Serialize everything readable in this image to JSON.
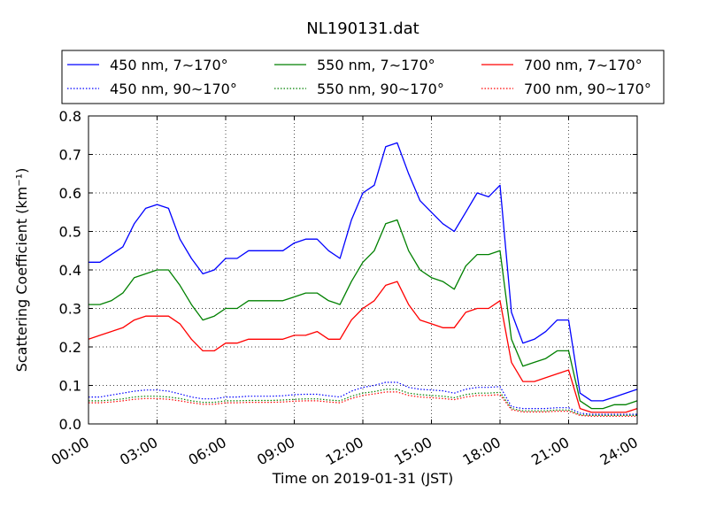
{
  "chart_data": {
    "type": "line",
    "title": "NL190131.dat",
    "xlabel": "Time on 2019-01-31 (JST)",
    "ylabel": "Scattering Coefficient (km⁻¹)",
    "xlim": [
      0,
      24
    ],
    "ylim": [
      0,
      0.8
    ],
    "grid": true,
    "legend_placement": "top",
    "x_tick_labels": [
      "00:00",
      "03:00",
      "06:00",
      "09:00",
      "12:00",
      "15:00",
      "18:00",
      "21:00",
      "24:00"
    ],
    "y_tick_labels": [
      "0.0",
      "0.1",
      "0.2",
      "0.3",
      "0.4",
      "0.5",
      "0.6",
      "0.7",
      "0.8"
    ],
    "x": [
      0,
      0.5,
      1,
      1.5,
      2,
      2.5,
      3,
      3.5,
      4,
      4.5,
      5,
      5.5,
      6,
      6.5,
      7,
      7.5,
      8,
      8.5,
      9,
      9.5,
      10,
      10.5,
      11,
      11.5,
      12,
      12.5,
      13,
      13.5,
      14,
      14.5,
      15,
      15.5,
      16,
      16.5,
      17,
      17.5,
      18,
      18.5,
      19,
      19.5,
      20,
      20.5,
      21,
      21.5,
      22,
      22.5,
      23,
      23.5,
      24
    ],
    "series": [
      {
        "name": "450 nm, 7∼170°",
        "color": "#0000ff",
        "style": "solid",
        "values": [
          0.42,
          0.42,
          0.44,
          0.46,
          0.52,
          0.56,
          0.57,
          0.56,
          0.48,
          0.43,
          0.39,
          0.4,
          0.43,
          0.43,
          0.45,
          0.45,
          0.45,
          0.45,
          0.47,
          0.48,
          0.48,
          0.45,
          0.43,
          0.53,
          0.6,
          0.62,
          0.72,
          0.73,
          0.65,
          0.58,
          0.55,
          0.52,
          0.5,
          0.55,
          0.6,
          0.59,
          0.62,
          0.29,
          0.21,
          0.22,
          0.24,
          0.27,
          0.27,
          0.08,
          0.06,
          0.06,
          0.07,
          0.08,
          0.09
        ]
      },
      {
        "name": "550 nm, 7∼170°",
        "color": "#008000",
        "style": "solid",
        "values": [
          0.31,
          0.31,
          0.32,
          0.34,
          0.38,
          0.39,
          0.4,
          0.4,
          0.36,
          0.31,
          0.27,
          0.28,
          0.3,
          0.3,
          0.32,
          0.32,
          0.32,
          0.32,
          0.33,
          0.34,
          0.34,
          0.32,
          0.31,
          0.37,
          0.42,
          0.45,
          0.52,
          0.53,
          0.45,
          0.4,
          0.38,
          0.37,
          0.35,
          0.41,
          0.44,
          0.44,
          0.45,
          0.22,
          0.15,
          0.16,
          0.17,
          0.19,
          0.19,
          0.06,
          0.04,
          0.04,
          0.05,
          0.05,
          0.06
        ]
      },
      {
        "name": "700 nm, 7∼170°",
        "color": "#ff0000",
        "style": "solid",
        "values": [
          0.22,
          0.23,
          0.24,
          0.25,
          0.27,
          0.28,
          0.28,
          0.28,
          0.26,
          0.22,
          0.19,
          0.19,
          0.21,
          0.21,
          0.22,
          0.22,
          0.22,
          0.22,
          0.23,
          0.23,
          0.24,
          0.22,
          0.22,
          0.27,
          0.3,
          0.32,
          0.36,
          0.37,
          0.31,
          0.27,
          0.26,
          0.25,
          0.25,
          0.29,
          0.3,
          0.3,
          0.32,
          0.16,
          0.11,
          0.11,
          0.12,
          0.13,
          0.14,
          0.04,
          0.03,
          0.03,
          0.03,
          0.03,
          0.04
        ]
      },
      {
        "name": "450 nm, 90∼170°",
        "color": "#0000ff",
        "style": "dotted",
        "values": [
          0.07,
          0.07,
          0.075,
          0.08,
          0.085,
          0.088,
          0.088,
          0.085,
          0.078,
          0.07,
          0.065,
          0.065,
          0.07,
          0.07,
          0.072,
          0.072,
          0.072,
          0.073,
          0.076,
          0.077,
          0.077,
          0.073,
          0.07,
          0.085,
          0.095,
          0.1,
          0.108,
          0.108,
          0.095,
          0.09,
          0.088,
          0.086,
          0.08,
          0.09,
          0.095,
          0.095,
          0.097,
          0.045,
          0.04,
          0.04,
          0.04,
          0.042,
          0.042,
          0.028,
          0.025,
          0.025,
          0.025,
          0.025,
          0.025
        ]
      },
      {
        "name": "550 nm, 90∼170°",
        "color": "#008000",
        "style": "dotted",
        "values": [
          0.06,
          0.06,
          0.062,
          0.065,
          0.07,
          0.072,
          0.072,
          0.07,
          0.066,
          0.06,
          0.056,
          0.056,
          0.06,
          0.06,
          0.061,
          0.061,
          0.061,
          0.062,
          0.064,
          0.065,
          0.065,
          0.062,
          0.06,
          0.072,
          0.08,
          0.084,
          0.09,
          0.09,
          0.08,
          0.076,
          0.074,
          0.072,
          0.068,
          0.076,
          0.08,
          0.08,
          0.082,
          0.04,
          0.034,
          0.034,
          0.034,
          0.036,
          0.036,
          0.024,
          0.022,
          0.022,
          0.022,
          0.022,
          0.022
        ]
      },
      {
        "name": "700 nm, 90∼170°",
        "color": "#ff0000",
        "style": "dotted",
        "values": [
          0.055,
          0.055,
          0.057,
          0.06,
          0.064,
          0.066,
          0.066,
          0.064,
          0.06,
          0.055,
          0.051,
          0.051,
          0.055,
          0.055,
          0.056,
          0.056,
          0.056,
          0.057,
          0.059,
          0.06,
          0.06,
          0.057,
          0.055,
          0.066,
          0.074,
          0.078,
          0.083,
          0.083,
          0.074,
          0.07,
          0.068,
          0.066,
          0.063,
          0.07,
          0.074,
          0.074,
          0.076,
          0.037,
          0.031,
          0.031,
          0.031,
          0.033,
          0.033,
          0.022,
          0.02,
          0.02,
          0.02,
          0.02,
          0.02
        ]
      }
    ]
  }
}
